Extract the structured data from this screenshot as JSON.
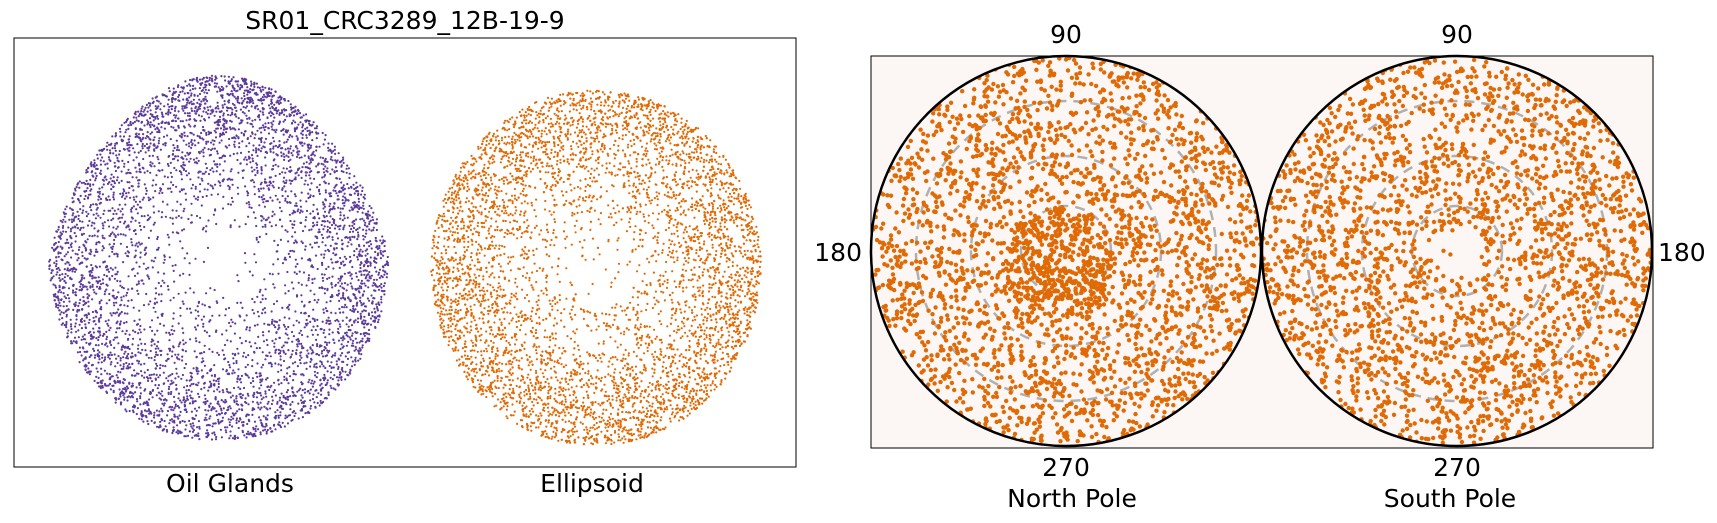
{
  "chart_data": [
    {
      "type": "scatter",
      "title": "SR01_CRC3289_12B-19-9",
      "xlabel": "",
      "ylabel": "",
      "grid": false,
      "series": [
        {
          "name": "Oil Glands",
          "color": "#5b3a9a",
          "shape": "egg",
          "approx_points": 5000
        },
        {
          "name": "Ellipsoid",
          "color": "#e06a05",
          "shape": "ellipse",
          "approx_points": 6000
        }
      ]
    },
    {
      "type": "scatter",
      "projection": "stereographic-polar",
      "panels": [
        {
          "name": "North Pole",
          "tick_top": "90",
          "tick_side": "180",
          "tick_bottom": "270",
          "dense_center": true
        },
        {
          "name": "South Pole",
          "tick_top": "90",
          "tick_side": "180",
          "tick_bottom": "270",
          "dense_center": false
        }
      ],
      "point_color": "#e06a05",
      "background": "#fcf7f5",
      "gridline_color": "#b0b0b0",
      "grid": true
    }
  ]
}
